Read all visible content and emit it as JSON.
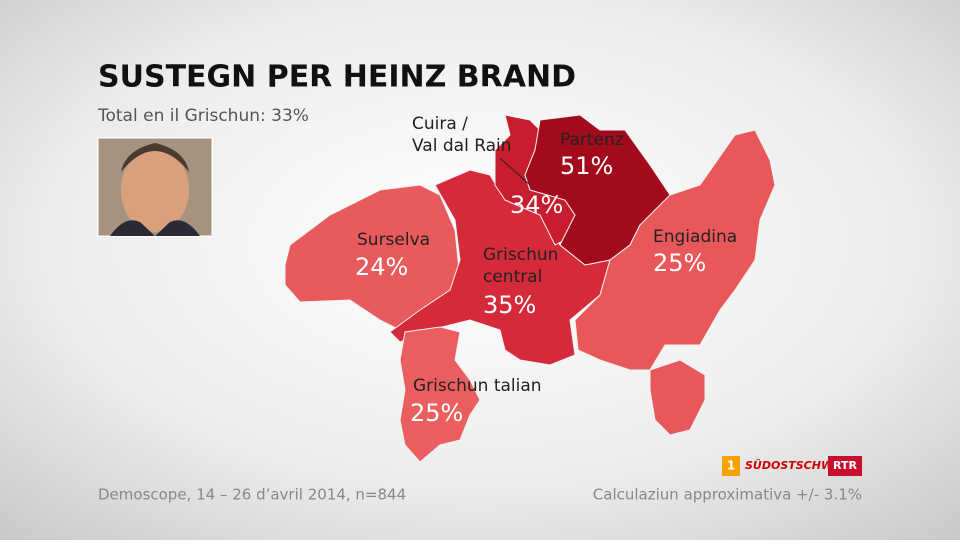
{
  "header": {
    "title": "SUSTEGN PER HEINZ BRAND",
    "subtitle": "Total en il Grischun: 33%"
  },
  "regions": [
    {
      "name": [
        "Surselva"
      ],
      "value": 24,
      "value_label": "24%",
      "color": "#e85a5c"
    },
    {
      "name": [
        "Grischun",
        "central"
      ],
      "value": 35,
      "value_label": "35%",
      "color": "#d42a3a"
    },
    {
      "name": [
        "Cuira /",
        "Val dal Rain"
      ],
      "value": 34,
      "value_label": "34%",
      "color": "#c81d2e"
    },
    {
      "name": [
        "Partenz"
      ],
      "value": 51,
      "value_label": "51%",
      "color": "#a30b1d"
    },
    {
      "name": [
        "Engiadina"
      ],
      "value": 25,
      "value_label": "25%",
      "color": "#e8575a"
    },
    {
      "name": [
        "Grischun talian"
      ],
      "value": 25,
      "value_label": "25%",
      "color": "#ea5e5f"
    }
  ],
  "footer": {
    "source": "Demoscope, 14 – 26 d’avril 2014, n=844",
    "note": "Calculaziun approximativa +/- 3.1%"
  },
  "logos": [
    "1",
    "SÜDOSTSCHWEIZ",
    "RTR"
  ]
}
